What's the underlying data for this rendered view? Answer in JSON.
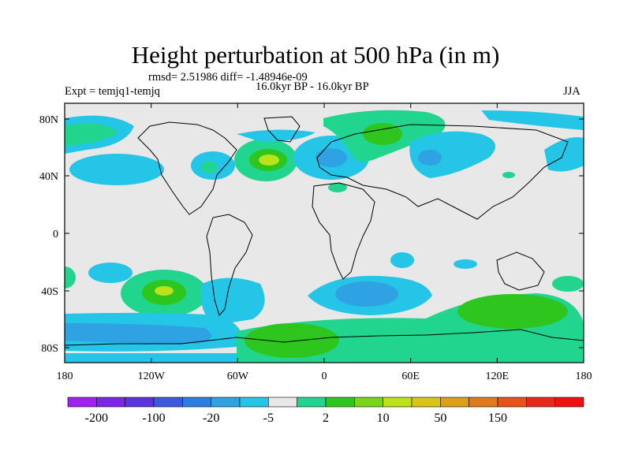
{
  "header": {
    "title": "Height perturbation at 500 hPa (in m)",
    "stats": "rmsd= 2.51986 diff= -1.48946e-09",
    "experiment": "Expt = temjq1-temjq",
    "period": "16.0kyr BP - 16.0kyr BP",
    "season": "JJA"
  },
  "map": {
    "lat_labels": [
      "80N",
      "40N",
      "0",
      "40S",
      "80S"
    ],
    "lon_labels": [
      "180",
      "120W",
      "60W",
      "0",
      "60E",
      "120E",
      "180"
    ]
  },
  "colorbar": {
    "colors": [
      "#a020f0",
      "#7d26e8",
      "#5a33dc",
      "#3b5ade",
      "#2b7fe0",
      "#2ea2e2",
      "#24c5e6",
      "#e8e8e8",
      "#21d58f",
      "#2fc51f",
      "#7ad41a",
      "#bde21c",
      "#d8c41a",
      "#dd9f1a",
      "#e07a1a",
      "#e5531a",
      "#e8281a",
      "#f0100f"
    ],
    "tick_labels": [
      "-200",
      "-100",
      "-20",
      "-5",
      "2",
      "10",
      "50",
      "150"
    ]
  }
}
